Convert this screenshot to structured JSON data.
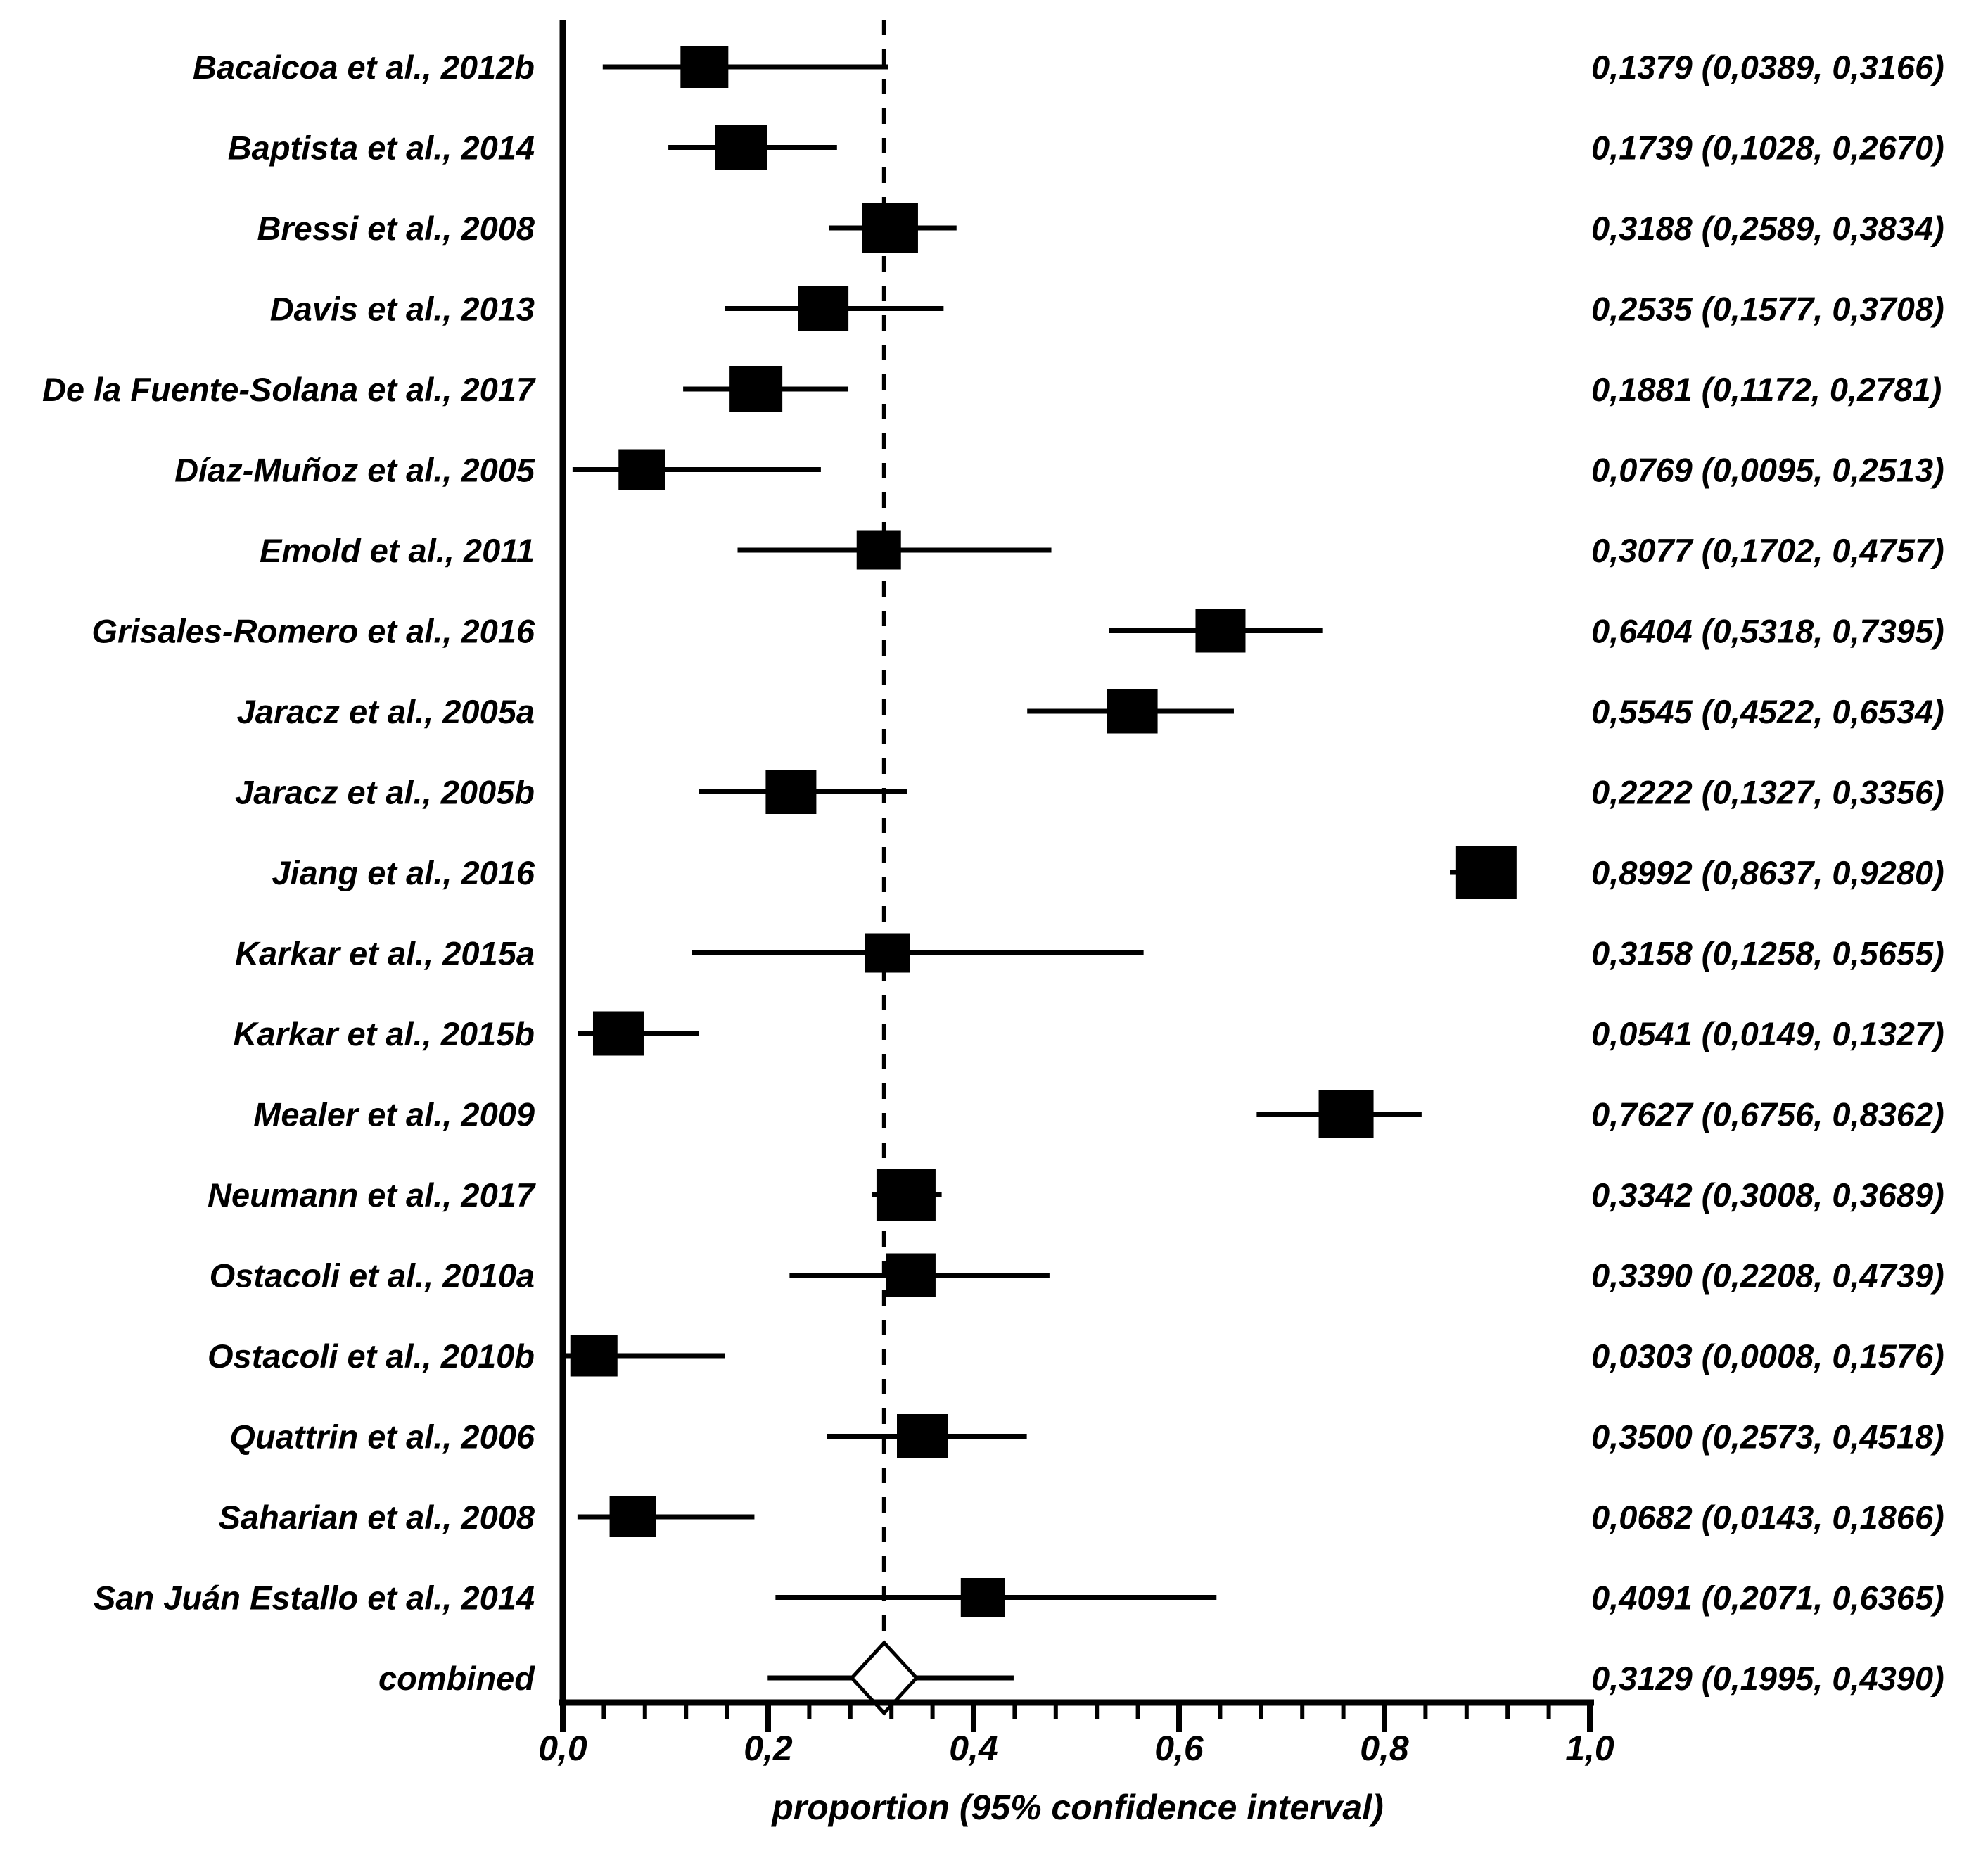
{
  "figure": {
    "background_color": "#ffffff",
    "ink_color": "#000000"
  },
  "chart_data": {
    "type": "forest",
    "title": "",
    "xlabel": "proportion (95% confidence interval)",
    "xlim": [
      0,
      1
    ],
    "x_major_ticks": [
      0,
      0.2,
      0.4,
      0.6,
      0.8,
      1.0
    ],
    "x_major_tick_labels": [
      "0,0",
      "0,2",
      "0,4",
      "0,6",
      "0,8",
      "1,0"
    ],
    "x_minor_tick_step": 0.04,
    "decimal_separator": ",",
    "grid": "off",
    "pooled_reference_line": 0.3129,
    "studies": [
      {
        "label": "Bacaicoa et al., 2012b",
        "estimate": 0.1379,
        "ci_low": 0.0389,
        "ci_high": 0.3166,
        "display": "0,1379 (0,0389, 0,3166)",
        "marker_size": 68
      },
      {
        "label": "Baptista et al., 2014",
        "estimate": 0.1739,
        "ci_low": 0.1028,
        "ci_high": 0.267,
        "display": "0,1739 (0,1028, 0,2670)",
        "marker_size": 74
      },
      {
        "label": "Bressi et al., 2008",
        "estimate": 0.3188,
        "ci_low": 0.2589,
        "ci_high": 0.3834,
        "display": "0,3188 (0,2589, 0,3834)",
        "marker_size": 79
      },
      {
        "label": "Davis et al., 2013",
        "estimate": 0.2535,
        "ci_low": 0.1577,
        "ci_high": 0.3708,
        "display": "0,2535 (0,1577, 0,3708)",
        "marker_size": 72
      },
      {
        "label": "De la Fuente-Solana et al., 2017",
        "estimate": 0.1881,
        "ci_low": 0.1172,
        "ci_high": 0.2781,
        "display": "0,1881 (0,1172, 0,2781)",
        "marker_size": 75
      },
      {
        "label": "Díaz-Muñoz et al., 2005",
        "estimate": 0.0769,
        "ci_low": 0.0095,
        "ci_high": 0.2513,
        "display": "0,0769 (0,0095, 0,2513)",
        "marker_size": 66
      },
      {
        "label": "Emold et al., 2011",
        "estimate": 0.3077,
        "ci_low": 0.1702,
        "ci_high": 0.4757,
        "display": "0,3077 (0,1702, 0,4757)",
        "marker_size": 63
      },
      {
        "label": "Grisales-Romero et al., 2016",
        "estimate": 0.6404,
        "ci_low": 0.5318,
        "ci_high": 0.7395,
        "display": "0,6404 (0,5318, 0,7395)",
        "marker_size": 71
      },
      {
        "label": "Jaracz et al., 2005a",
        "estimate": 0.5545,
        "ci_low": 0.4522,
        "ci_high": 0.6534,
        "display": "0,5545 (0,4522, 0,6534)",
        "marker_size": 72
      },
      {
        "label": "Jaracz et al., 2005b",
        "estimate": 0.2222,
        "ci_low": 0.1327,
        "ci_high": 0.3356,
        "display": "0,2222 (0,1327, 0,3356)",
        "marker_size": 72
      },
      {
        "label": "Jiang et al., 2016",
        "estimate": 0.8992,
        "ci_low": 0.8637,
        "ci_high": 0.928,
        "display": "0,8992 (0,8637, 0,9280)",
        "marker_size": 86
      },
      {
        "label": "Karkar et al., 2015a",
        "estimate": 0.3158,
        "ci_low": 0.1258,
        "ci_high": 0.5655,
        "display": "0,3158 (0,1258, 0,5655)",
        "marker_size": 64
      },
      {
        "label": "Karkar et al., 2015b",
        "estimate": 0.0541,
        "ci_low": 0.0149,
        "ci_high": 0.1327,
        "display": "0,0541 (0,0149, 0,1327)",
        "marker_size": 72
      },
      {
        "label": "Mealer et al., 2009",
        "estimate": 0.7627,
        "ci_low": 0.6756,
        "ci_high": 0.8362,
        "display": "0,7627 (0,6756, 0,8362)",
        "marker_size": 78
      },
      {
        "label": "Neumann et al., 2017",
        "estimate": 0.3342,
        "ci_low": 0.3008,
        "ci_high": 0.3689,
        "display": "0,3342 (0,3008, 0,3689)",
        "marker_size": 84
      },
      {
        "label": "Ostacoli et al., 2010a",
        "estimate": 0.339,
        "ci_low": 0.2208,
        "ci_high": 0.4739,
        "display": "0,3390 (0,2208, 0,4739)",
        "marker_size": 70
      },
      {
        "label": "Ostacoli et al., 2010b",
        "estimate": 0.0303,
        "ci_low": 0.0008,
        "ci_high": 0.1576,
        "display": "0,0303 (0,0008, 0,1576)",
        "marker_size": 67
      },
      {
        "label": "Quattrin et al., 2006",
        "estimate": 0.35,
        "ci_low": 0.2573,
        "ci_high": 0.4518,
        "display": "0,3500 (0,2573, 0,4518)",
        "marker_size": 72
      },
      {
        "label": "Saharian et al., 2008",
        "estimate": 0.0682,
        "ci_low": 0.0143,
        "ci_high": 0.1866,
        "display": "0,0682 (0,0143, 0,1866)",
        "marker_size": 66
      },
      {
        "label": "San Juán Estallo et al., 2014",
        "estimate": 0.4091,
        "ci_low": 0.2071,
        "ci_high": 0.6365,
        "display": "0,4091 (0,2071, 0,6365)",
        "marker_size": 63
      }
    ],
    "combined": {
      "label": "combined",
      "estimate": 0.3129,
      "ci_low": 0.1995,
      "ci_high": 0.439,
      "display": "0,3129 (0,1995, 0,4390)"
    }
  }
}
